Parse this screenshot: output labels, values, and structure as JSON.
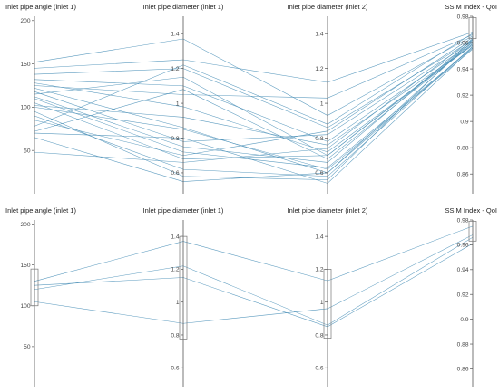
{
  "chart_data": [
    {
      "type": "parallel_coordinates",
      "panel": "top",
      "axes": [
        {
          "label": "Inlet pipe angle (inlet 1)",
          "ticks": [
            50,
            100,
            150,
            200
          ],
          "range": [
            0,
            205
          ]
        },
        {
          "label": "Inlet pipe diameter (inlet 1)",
          "ticks": [
            0.6,
            0.8,
            1.0,
            1.2,
            1.4
          ],
          "range": [
            0.48,
            1.5
          ]
        },
        {
          "label": "Inlet pipe diameter (inlet 2)",
          "ticks": [
            0.6,
            0.8,
            1.0,
            1.2,
            1.4
          ],
          "range": [
            0.48,
            1.5
          ]
        },
        {
          "label": "SSIM Index - QoI",
          "ticks": [
            0.86,
            0.88,
            0.9,
            0.92,
            0.94,
            0.96,
            0.98
          ],
          "range": [
            0.845,
            0.98
          ]
        }
      ],
      "records": [
        [
          152,
          1.37,
          0.93,
          0.965
        ],
        [
          145,
          1.25,
          1.12,
          0.968
        ],
        [
          138,
          1.2,
          0.86,
          0.962
        ],
        [
          132,
          1.1,
          0.78,
          0.96
        ],
        [
          128,
          0.98,
          0.72,
          0.958
        ],
        [
          125,
          1.05,
          1.03,
          0.966
        ],
        [
          122,
          0.86,
          0.6,
          0.957
        ],
        [
          118,
          0.78,
          0.82,
          0.961
        ],
        [
          115,
          1.15,
          0.7,
          0.959
        ],
        [
          112,
          0.75,
          0.66,
          0.962
        ],
        [
          110,
          0.72,
          0.63,
          0.956
        ],
        [
          105,
          0.68,
          0.7,
          0.96
        ],
        [
          102,
          0.92,
          0.76,
          0.958
        ],
        [
          100,
          0.85,
          0.62,
          0.955
        ],
        [
          95,
          0.58,
          0.56,
          0.963
        ],
        [
          90,
          0.62,
          0.58,
          0.957
        ],
        [
          85,
          0.7,
          0.84,
          0.964
        ],
        [
          78,
          1.22,
          0.88,
          0.967
        ],
        [
          72,
          1.08,
          0.68,
          0.959
        ],
        [
          70,
          0.8,
          0.54,
          0.956
        ],
        [
          65,
          0.55,
          0.6,
          0.961
        ],
        [
          48,
          0.66,
          0.74,
          0.963
        ]
      ],
      "brushes": [
        {
          "axis": 3,
          "range": [
            0.963,
            0.979
          ]
        }
      ]
    },
    {
      "type": "parallel_coordinates",
      "panel": "bottom",
      "axes": [
        {
          "label": "Inlet pipe angle (inlet 1)",
          "ticks": [
            50,
            100,
            150,
            200
          ],
          "range": [
            0,
            205
          ]
        },
        {
          "label": "Inlet pipe diameter (inlet 1)",
          "ticks": [
            0.6,
            0.8,
            1.0,
            1.2,
            1.4
          ],
          "range": [
            0.48,
            1.5
          ]
        },
        {
          "label": "Inlet pipe diameter (inlet 2)",
          "ticks": [
            0.6,
            0.8,
            1.0,
            1.2,
            1.4
          ],
          "range": [
            0.48,
            1.5
          ]
        },
        {
          "label": "SSIM Index - QoI",
          "ticks": [
            0.86,
            0.88,
            0.9,
            0.92,
            0.94,
            0.96,
            0.98
          ],
          "range": [
            0.845,
            0.98
          ]
        }
      ],
      "records": [
        [
          130,
          1.37,
          1.13,
          0.975
        ],
        [
          125,
          1.15,
          0.85,
          0.961
        ],
        [
          120,
          1.22,
          0.86,
          0.966
        ],
        [
          105,
          0.87,
          0.96,
          0.968
        ]
      ],
      "brushes": [
        {
          "axis": 0,
          "range": [
            100,
            145
          ]
        },
        {
          "axis": 1,
          "range": [
            0.77,
            1.4
          ]
        },
        {
          "axis": 2,
          "range": [
            0.78,
            1.2
          ]
        },
        {
          "axis": 3,
          "range": [
            0.963,
            0.979
          ]
        }
      ]
    }
  ]
}
